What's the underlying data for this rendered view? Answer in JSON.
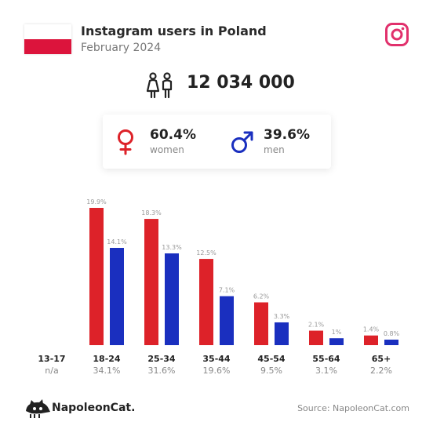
{
  "header": {
    "title": "Instagram users in Poland",
    "subtitle": "February 2024"
  },
  "colors": {
    "women": "#dd2229",
    "men": "#1a2fbf",
    "flag_red": "#dc143c",
    "instagram": "#e1306c"
  },
  "icons": {
    "flag": "poland-flag-icon",
    "platform": "instagram-icon",
    "users": "users-icon",
    "women": "female-symbol-icon",
    "men": "male-symbol-icon",
    "brand": "napoleoncat-logo-icon"
  },
  "total_users": "12 034 000",
  "gender": {
    "women": {
      "pct": "60.4%",
      "label": "women"
    },
    "men": {
      "pct": "39.6%",
      "label": "men"
    }
  },
  "chart_data": {
    "type": "bar",
    "categories": [
      "13-17",
      "18-24",
      "25-34",
      "35-44",
      "45-54",
      "55-64",
      "65+"
    ],
    "category_totals": [
      "n/a",
      "34.1%",
      "31.6%",
      "19.6%",
      "9.5%",
      "3.1%",
      "2.2%"
    ],
    "series": [
      {
        "name": "women",
        "values": [
          null,
          19.9,
          18.3,
          12.5,
          6.2,
          2.1,
          1.4
        ],
        "labels": [
          "",
          "19.9%",
          "18.3%",
          "12.5%",
          "6.2%",
          "2.1%",
          "1.4%"
        ]
      },
      {
        "name": "men",
        "values": [
          null,
          14.1,
          13.3,
          7.1,
          3.3,
          1.0,
          0.8
        ],
        "labels": [
          "",
          "14.1%",
          "13.3%",
          "7.1%",
          "3.3%",
          "1%",
          "0.8%"
        ]
      }
    ],
    "ylim": [
      0,
      20
    ],
    "grid": false,
    "legend": "none"
  },
  "footer": {
    "brand": "NapoleonCat.",
    "source": "Source: NapoleonCat.com"
  }
}
